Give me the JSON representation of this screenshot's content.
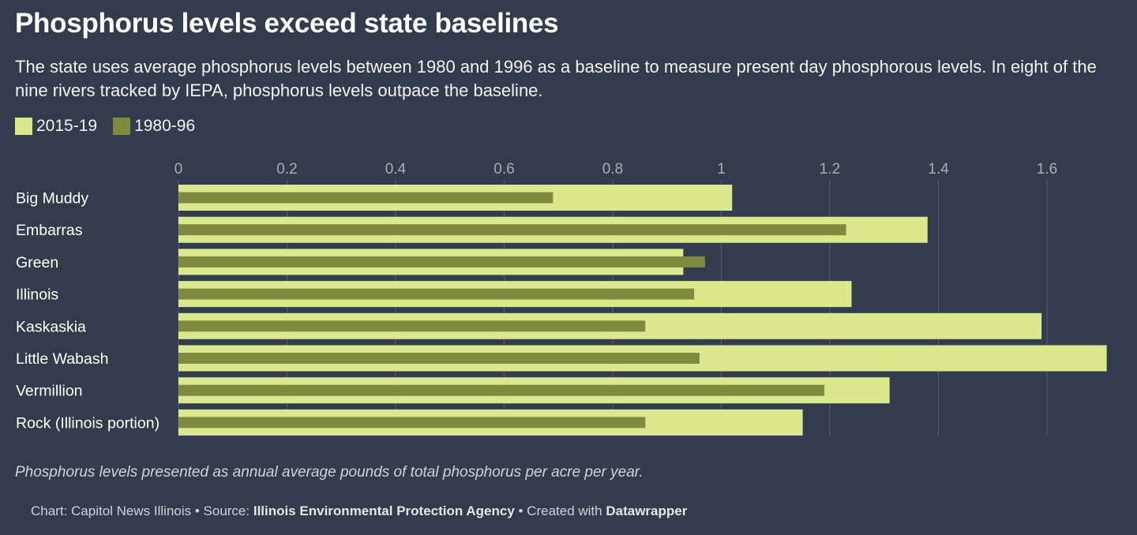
{
  "title": "Phosphorus levels exceed state baselines",
  "subtitle": "The state uses average phosphorus levels between 1980 and 1996 as a baseline to measure present day phosphorous levels. In eight of the nine rivers tracked by IEPA, phosphorus levels outpace the baseline.",
  "note": "Phosphorus levels presented as annual average pounds of total phosphorus per acre per year.",
  "credit": {
    "prefix": "Chart: Capitol News Illinois • Source: ",
    "source": "Illinois Environmental Protection Agency",
    "middle": " • Created with ",
    "tool": "Datawrapper"
  },
  "colors": {
    "background": "#333c4c",
    "recent": "#dce88e",
    "baseline": "#7f8b3e",
    "gridline": "#59606c",
    "tick_label": "#a7adb6"
  },
  "chart_data": {
    "type": "bar",
    "orientation": "horizontal",
    "categories": [
      "Big Muddy",
      "Embarras",
      "Green",
      "Illinois",
      "Kaskaskia",
      "Little Wabash",
      "Vermillion",
      "Rock (Illinois portion)"
    ],
    "series": [
      {
        "name": "2015-19",
        "values": [
          1.02,
          1.38,
          0.93,
          1.24,
          1.59,
          1.71,
          1.31,
          1.15
        ]
      },
      {
        "name": "1980-96",
        "values": [
          0.69,
          1.23,
          0.97,
          0.95,
          0.86,
          0.96,
          1.19,
          0.86
        ]
      }
    ],
    "xlim": [
      0,
      1.7
    ],
    "xticks": [
      "0",
      "0.2",
      "0.4",
      "0.6",
      "0.8",
      "1",
      "1.2",
      "1.4",
      "1.6"
    ],
    "grid": true,
    "legend_position": "top-left"
  }
}
